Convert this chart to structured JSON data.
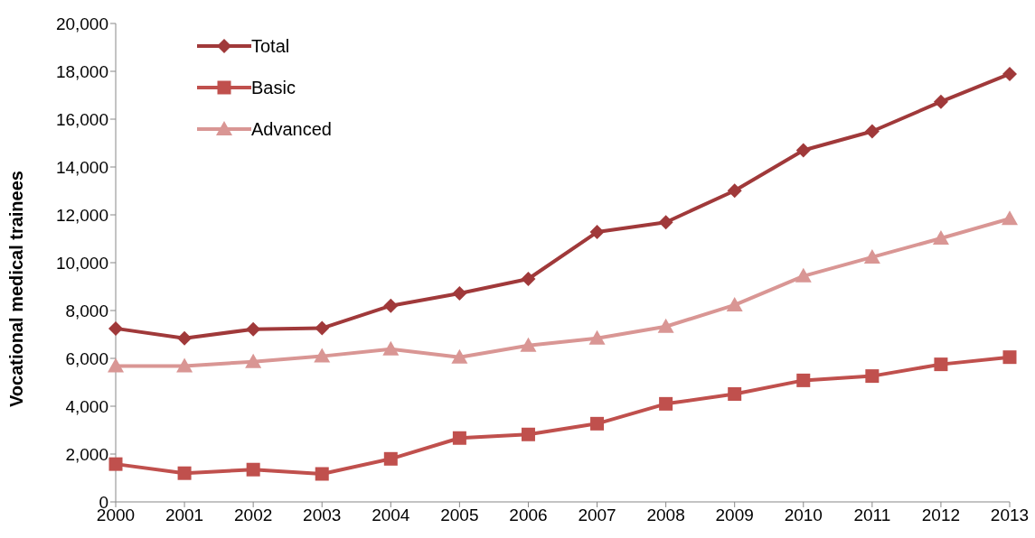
{
  "chart_data": {
    "type": "line",
    "ylabel": "Vocational medical trainees",
    "categories": [
      "2000",
      "2001",
      "2002",
      "2003",
      "2004",
      "2005",
      "2006",
      "2007",
      "2008",
      "2009",
      "2010",
      "2011",
      "2012",
      "2013"
    ],
    "series": [
      {
        "name": "Total",
        "color": "#a0393a",
        "marker": "diamond",
        "values": [
          7250,
          6840,
          7220,
          7260,
          8200,
          8720,
          9320,
          11280,
          11690,
          13010,
          14700,
          15490,
          16730,
          17890
        ]
      },
      {
        "name": "Basic",
        "color": "#c0504d",
        "marker": "square",
        "values": [
          1580,
          1200,
          1350,
          1170,
          1800,
          2670,
          2820,
          3270,
          4100,
          4510,
          5080,
          5260,
          5750,
          6050
        ]
      },
      {
        "name": "Advanced",
        "color": "#d99694",
        "marker": "triangle",
        "values": [
          5680,
          5680,
          5860,
          6090,
          6390,
          6050,
          6540,
          6840,
          7330,
          8230,
          9440,
          10230,
          11020,
          11840
        ]
      }
    ],
    "ylim": [
      0,
      20000
    ],
    "yticks": [
      0,
      {
        "value": 2000,
        "label": "2,000"
      },
      {
        "value": 4000,
        "label": "4,000"
      },
      {
        "value": 6000,
        "label": "6,000"
      },
      {
        "value": 8000,
        "label": "8,000"
      },
      {
        "value": 10000,
        "label": "10,000"
      },
      {
        "value": 12000,
        "label": "12,000"
      },
      {
        "value": 14000,
        "label": "14,000"
      },
      {
        "value": 16000,
        "label": "16,000"
      },
      {
        "value": 18000,
        "label": "18,000"
      },
      {
        "value": 20000,
        "label": "20,000"
      }
    ],
    "grid": false,
    "legend": "top left",
    "line_style": "solid"
  }
}
